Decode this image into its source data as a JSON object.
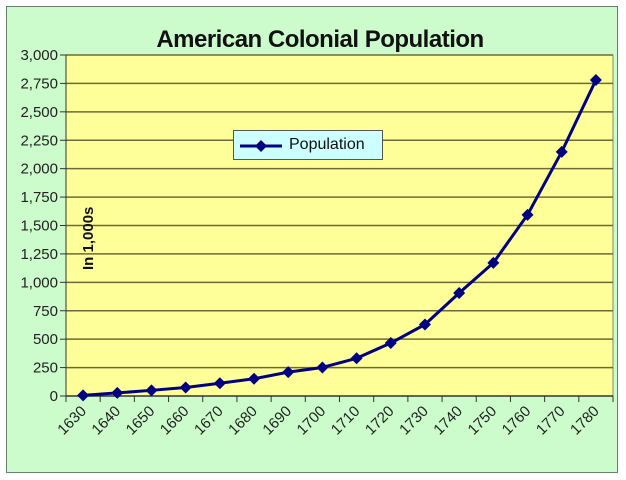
{
  "chart_data": {
    "type": "line",
    "title": "American Colonial  Population",
    "xlabel": "",
    "ylabel": "In 1,000s",
    "categories": [
      "1630",
      "1640",
      "1650",
      "1660",
      "1670",
      "1680",
      "1690",
      "1700",
      "1710",
      "1720",
      "1730",
      "1740",
      "1750",
      "1760",
      "1770",
      "1780"
    ],
    "series": [
      {
        "name": "Population",
        "color": "#000080",
        "marker": "diamond",
        "values": [
          5,
          27,
          50,
          75,
          112,
          152,
          210,
          251,
          332,
          466,
          629,
          906,
          1171,
          1594,
          2148,
          2780
        ]
      }
    ],
    "ylim": [
      0,
      3000
    ],
    "yticks": [
      0,
      250,
      500,
      750,
      1000,
      1250,
      1500,
      1750,
      2000,
      2250,
      2500,
      2750,
      3000
    ],
    "ytick_labels": [
      "0",
      "250",
      "500",
      "750",
      "1,000",
      "1,250",
      "1,500",
      "1,750",
      "2,000",
      "2,250",
      "2,500",
      "2,750",
      "3,000"
    ],
    "grid": "horizontal",
    "legend_position": "inside-upper-left",
    "colors": {
      "chart_background": "#ccfccc",
      "plot_background": "#ffff99",
      "gridline": "#6b6b3a",
      "legend_background": "#ccffff",
      "line": "#000080"
    }
  },
  "legend": {
    "label": "Population"
  }
}
